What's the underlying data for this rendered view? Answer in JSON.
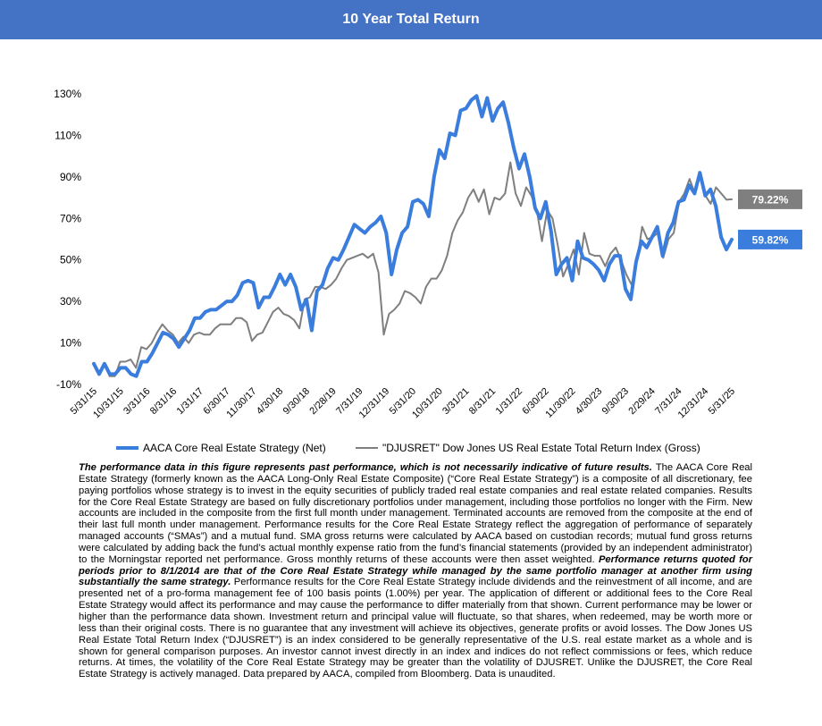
{
  "header": {
    "title": "10 Year Total Return"
  },
  "chart_data": {
    "type": "line",
    "title": "10 Year Total Return",
    "ylim": [
      -10,
      130
    ],
    "yticks": [
      -10,
      10,
      30,
      50,
      70,
      90,
      110,
      130
    ],
    "ytick_labels": [
      "-10%",
      "10%",
      "30%",
      "50%",
      "70%",
      "90%",
      "110%",
      "130%"
    ],
    "grid": false,
    "legend_position": "bottom",
    "x_tick_labels": [
      "5/31/15",
      "10/31/15",
      "3/31/16",
      "8/31/16",
      "1/31/17",
      "6/30/17",
      "11/30/17",
      "4/30/18",
      "9/30/18",
      "2/28/19",
      "7/31/19",
      "12/31/19",
      "5/31/20",
      "10/31/20",
      "3/31/21",
      "8/31/21",
      "1/31/22",
      "6/30/22",
      "11/30/22",
      "4/30/23",
      "9/30/23",
      "2/29/24",
      "7/31/24",
      "12/31/24",
      "5/31/25"
    ],
    "series": [
      {
        "name": "AACA Core Real Estate Strategy (Net)",
        "color": "#3B7DDD",
        "end_label": "59.82%",
        "values": [
          0,
          -5,
          0,
          -5,
          -5,
          -2,
          -2,
          -5,
          -6,
          1,
          1,
          5,
          10,
          15,
          14,
          12,
          8,
          12,
          16,
          22,
          22,
          25,
          26,
          26,
          28,
          30,
          30,
          33,
          39,
          40,
          39,
          27,
          32,
          32,
          37,
          43,
          38,
          43,
          37,
          26,
          31,
          16,
          35,
          38,
          46,
          51,
          50,
          55,
          61,
          67,
          65,
          63,
          66,
          68,
          71,
          63,
          43,
          55,
          63,
          66,
          78,
          79,
          77,
          71,
          90,
          103,
          99,
          111,
          110,
          122,
          123,
          127,
          129,
          119,
          128,
          117,
          123,
          126,
          116,
          104,
          94,
          101,
          90,
          75,
          70,
          78,
          64,
          43,
          48,
          51,
          40,
          59,
          51,
          50,
          48,
          45,
          40,
          48,
          52,
          52,
          36,
          31,
          49,
          59,
          56,
          61,
          66,
          52,
          63,
          68,
          78,
          79,
          86,
          82,
          92,
          81,
          84,
          76,
          61,
          55,
          59.82
        ]
      },
      {
        "name": "\"DJUSRET\" Dow Jones US Real Estate Total Return Index (Gross)",
        "color": "#7F7F7F",
        "end_label": "79.22%",
        "values": [
          0,
          -5,
          0,
          -6,
          -6,
          1,
          1,
          2,
          -2,
          8,
          7,
          10,
          15,
          19,
          16,
          14,
          10,
          13,
          10,
          14,
          15,
          14,
          14,
          17,
          19,
          19,
          19,
          22,
          22,
          20,
          11,
          14,
          15,
          20,
          25,
          27,
          24,
          23,
          21,
          17,
          31,
          32,
          37,
          37,
          36,
          38,
          41,
          46,
          50,
          51,
          52,
          53,
          51,
          53,
          44,
          14,
          24,
          26,
          29,
          35,
          34,
          32,
          29,
          37,
          41,
          41,
          45,
          52,
          63,
          69,
          73,
          80,
          84,
          78,
          84,
          72,
          80,
          79,
          82,
          97,
          82,
          76,
          85,
          81,
          74,
          59,
          74,
          70,
          57,
          42,
          48,
          55,
          43,
          63,
          53,
          52,
          52,
          47,
          53,
          56,
          50,
          43,
          38,
          49,
          66,
          60,
          61,
          63,
          51,
          60,
          63,
          78,
          82,
          89,
          82,
          91,
          81,
          77,
          85,
          82,
          79,
          79.22
        ]
      }
    ]
  },
  "legend": {
    "series1_label": "AACA Core Real Estate Strategy (Net)",
    "series2_label": "\"DJUSRET\" Dow Jones US Real Estate Total Return Index (Gross)"
  },
  "disclaimer": {
    "p1": "The performance data in this figure represents past performance, which is not necessarily indicative of future results.",
    "p2": " The AACA  Core Real Estate Strategy (formerly known as the AACA  Long-Only Real Estate Composite) (“Core Real Estate Strategy”) is a composite of all discretionary, fee paying portfolios whose strategy is to invest in the equity securities of publicly traded real estate companies and real estate related companies. Results for the Core Real Estate Strategy  are based on fully discretionary portfolios under management, including those portfolios no longer with the Firm. New accounts are included in the composite from the first full month under management. Terminated accounts are removed from the composite at the end of their last full month under management. Performance results for the Core Real Estate Strategy reflect the aggregation of performance of separately managed accounts (“SMAs”) and a mutual fund. SMA  gross returns were calculated by AACA  based on custodian records; mutual fund gross returns were calculated by adding back the fund’s actual monthly expense ratio from the fund’s financial statements (provided by an independent administrator) to the Morningstar reported net performance. Gross monthly returns of these accounts were then asset weighted. ",
    "p3": "Performance returns quoted for periods prior to 8/1/2014 are that of the Core Real Estate Strategy while managed by the same portfolio manager at another firm using substantially the same strategy.",
    "p4": " Performance results for the Core Real Estate Strategy include dividends and the reinvestment of all income, and are presented net of a pro-forma management fee of 100 basis points (1.00%) per year. The application of different or additional fees to the Core Real Estate Strategy would affect its performance and may cause the performance to differ materially from that  shown. Current performance may be lower or higher than the performance data shown. Investment return and principal value will fluctuate, so that shares, when redeemed, may be worth more or less than their original costs. There is no guarantee that any investment will achieve its objectives, generate profits or avoid losses. The Dow Jones US Real Estate Total Return Index (“DJUSRET”) is an index considered to be generally representative of the U.S.  real estate market as a whole and is shown for general comparison purposes. An investor cannot invest directly in an index and indices do not reflect commissions or fees, which reduce returns. At  times, the volatility of the Core Real Estate Strategy may be greater than the volatility of DJUSRET. Unlike the DJUSRET, the Core Real Estate Strategy is actively managed. Data prepared by AACA,  compiled from Bloomberg. Data is unaudited."
  }
}
